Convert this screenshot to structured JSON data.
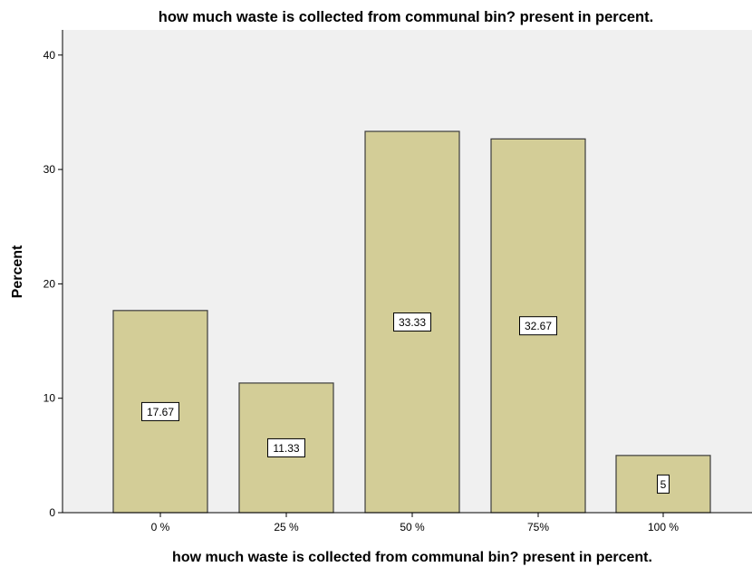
{
  "chart_data": {
    "type": "bar",
    "title": "how much waste is collected from communal bin? present in percent.",
    "xlabel": "how much waste is collected from communal bin? present in percent.",
    "ylabel": "Percent",
    "categories": [
      "0 %",
      "25 %",
      "50 %",
      "75%",
      "100 %"
    ],
    "values": [
      17.67,
      11.33,
      33.33,
      32.67,
      5
    ],
    "data_labels": [
      "17.67",
      "11.33",
      "33.33",
      "32.67",
      "5"
    ],
    "ylim": [
      0,
      42
    ],
    "yticks": [
      0,
      10,
      20,
      30,
      40
    ],
    "grid": false,
    "colors": {
      "bar_fill": "#d3cd97",
      "bar_stroke": "#3c3c3c",
      "plot_background": "#f0f0f0",
      "axis": "#000000"
    }
  }
}
